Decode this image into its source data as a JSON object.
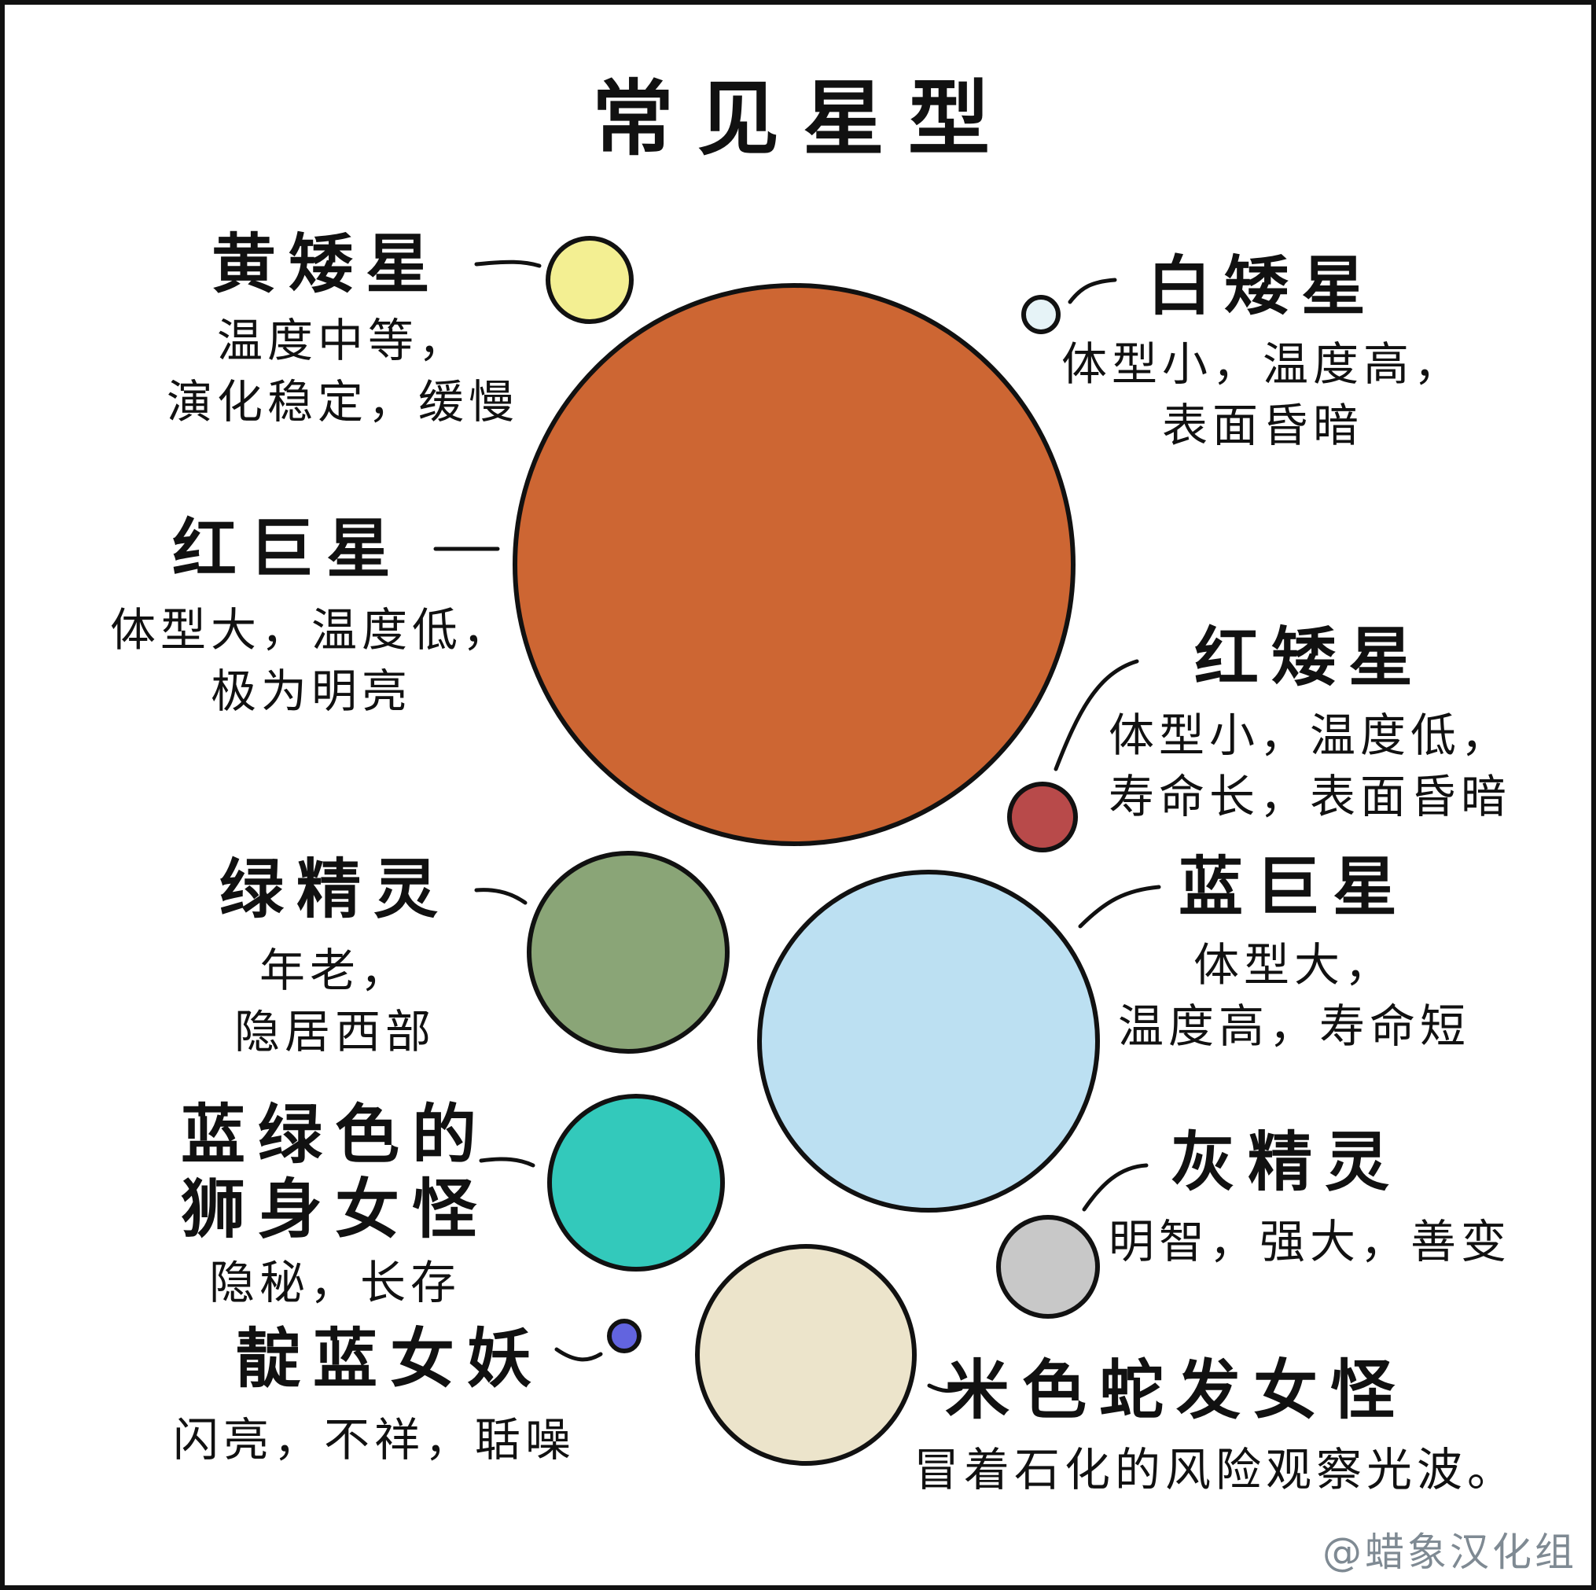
{
  "title": "常见星型",
  "credit": "@蜡象汉化组",
  "colors": {
    "outline": "#111111",
    "yellow_dwarf": "#f3ef92",
    "white_dwarf": "#e6f3f7",
    "red_giant": "#cd6633",
    "red_dwarf": "#b84a4a",
    "green_elf": "#8aa577",
    "blue_giant": "#bce0f2",
    "teal_sphinx": "#33c9bb",
    "gray_elf": "#c8c8c8",
    "indigo_fairy": "#6264df",
    "beige_gorgon": "#ece4cb"
  },
  "stars": [
    {
      "id": "yellow-dwarf",
      "name": "黄矮星",
      "lines": [
        "温度中等，",
        "演化稳定，缓慢"
      ]
    },
    {
      "id": "white-dwarf",
      "name": "白矮星",
      "lines": [
        "体型小，温度高，",
        "表面昏暗"
      ]
    },
    {
      "id": "red-giant",
      "name": "红巨星",
      "lines": [
        "体型大，温度低，",
        "极为明亮"
      ]
    },
    {
      "id": "red-dwarf",
      "name": "红矮星",
      "lines": [
        "体型小，温度低，",
        "寿命长，表面昏暗"
      ]
    },
    {
      "id": "green-elf",
      "name": "绿精灵",
      "lines": [
        "年老，",
        "隐居西部"
      ]
    },
    {
      "id": "blue-giant",
      "name": "蓝巨星",
      "lines": [
        "体型大，",
        "温度高，寿命短"
      ]
    },
    {
      "id": "teal-sphinx",
      "name": "蓝绿色的\n狮身女怪",
      "lines": [
        "隐秘，长存"
      ]
    },
    {
      "id": "gray-elf",
      "name": "灰精灵",
      "lines": [
        "明智，强大，善变"
      ]
    },
    {
      "id": "indigo-fairy",
      "name": "靛蓝女妖",
      "lines": [
        "闪亮，不祥，聒噪"
      ]
    },
    {
      "id": "beige-gorgon",
      "name": "米色蛇发女怪",
      "lines": [
        "冒着石化的风险观察光波。"
      ]
    }
  ]
}
